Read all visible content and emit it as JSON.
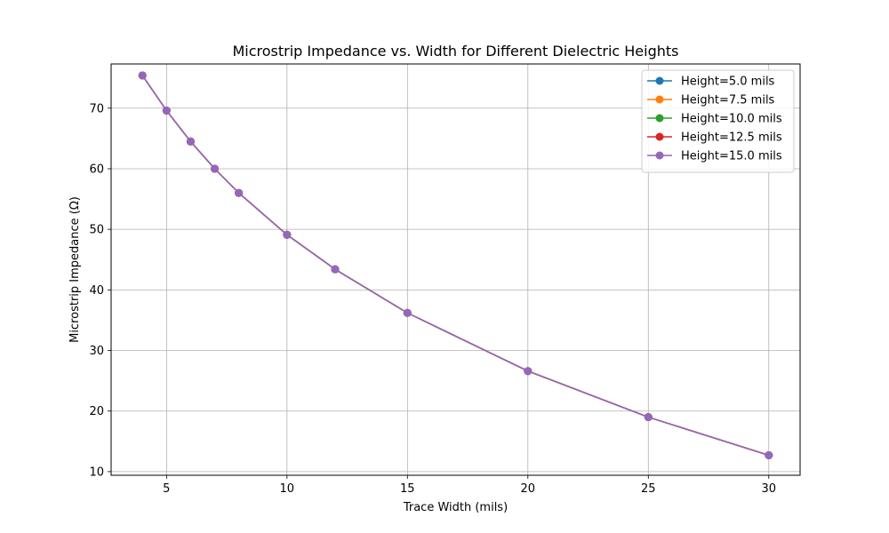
{
  "chart_data": {
    "type": "line",
    "title": "Microstrip Impedance vs. Width for Different Dielectric Heights",
    "xlabel": "Trace Width (mils)",
    "ylabel": "Microstrip Impedance (Ω)",
    "xlim": [
      2.7,
      31.3
    ],
    "ylim": [
      9.4,
      77.3
    ],
    "xticks": [
      5,
      10,
      15,
      20,
      25,
      30
    ],
    "yticks": [
      10,
      20,
      30,
      40,
      50,
      60,
      70
    ],
    "grid": true,
    "legend_position": "top-right",
    "x": [
      4,
      5,
      6,
      7,
      8,
      10,
      12,
      15,
      20,
      25,
      30
    ],
    "series": [
      {
        "name": "Height=5.0 mils",
        "color": "#1f77b4",
        "values": [
          75.4,
          69.6,
          64.5,
          60.0,
          56.0,
          49.1,
          43.4,
          36.2,
          26.6,
          19.0,
          12.7
        ]
      },
      {
        "name": "Height=7.5 mils",
        "color": "#ff7f0e",
        "values": [
          75.4,
          69.6,
          64.5,
          60.0,
          56.0,
          49.1,
          43.4,
          36.2,
          26.6,
          19.0,
          12.7
        ]
      },
      {
        "name": "Height=10.0 mils",
        "color": "#2ca02c",
        "values": [
          75.4,
          69.6,
          64.5,
          60.0,
          56.0,
          49.1,
          43.4,
          36.2,
          26.6,
          19.0,
          12.7
        ]
      },
      {
        "name": "Height=12.5 mils",
        "color": "#d62728",
        "values": [
          75.4,
          69.6,
          64.5,
          60.0,
          56.0,
          49.1,
          43.4,
          36.2,
          26.6,
          19.0,
          12.7
        ]
      },
      {
        "name": "Height=15.0 mils",
        "color": "#9467bd",
        "values": [
          75.4,
          69.6,
          64.5,
          60.0,
          56.0,
          49.1,
          43.4,
          36.2,
          26.6,
          19.0,
          12.7
        ]
      }
    ]
  }
}
